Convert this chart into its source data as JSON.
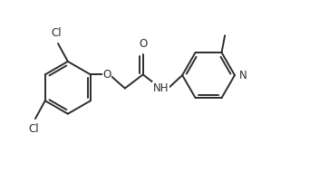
{
  "background": "#ffffff",
  "line_color": "#2d2d2d",
  "line_width": 1.4,
  "font_size": 8.5,
  "figsize": [
    3.63,
    1.9
  ],
  "dpi": 100,
  "xlim": [
    0,
    10
  ],
  "ylim": [
    0,
    5.2
  ]
}
